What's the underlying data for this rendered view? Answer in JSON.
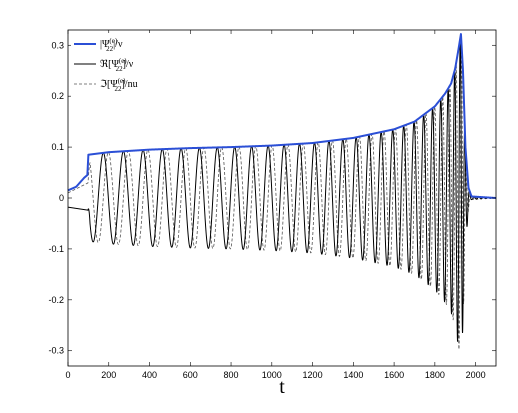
{
  "chart_data": {
    "type": "line",
    "title": "",
    "xlabel": "t",
    "ylabel": "",
    "xlim": [
      0,
      2100
    ],
    "ylim": [
      -0.33,
      0.33
    ],
    "x_ticks": [
      "0",
      "200",
      "400",
      "600",
      "800",
      "1000",
      "1200",
      "1400",
      "1600",
      "1800",
      "2000"
    ],
    "y_ticks": [
      "-0.3",
      "-0.2",
      "-0.1",
      "0",
      "0.1",
      "0.2",
      "0.3"
    ],
    "grid": false,
    "legend_position": "top-left",
    "series": [
      {
        "name": "|Ψ22(e)|/ν",
        "legend": {
          "pre": "|Ψ",
          "sup": "(e)",
          "sub": "22",
          "post": "|/ν"
        },
        "style": "solid",
        "color": "#2b4fd6",
        "width": 2,
        "description": "amplitude envelope",
        "model": "amplitude"
      },
      {
        "name": "ℜ[Ψ22(e)]/ν",
        "legend": {
          "pre": "ℜ[Ψ",
          "sup": "(e)",
          "sub": "22",
          "post": "]/ν"
        },
        "style": "solid",
        "color": "#000000",
        "width": 1,
        "model": "real"
      },
      {
        "name": "ℑ[Ψ22(e)]/nu",
        "legend": {
          "pre": "ℑ[Ψ",
          "sup": "(e)",
          "sub": "22",
          "post": "]/nu"
        },
        "style": "dashed",
        "color": "#555555",
        "width": 0.8,
        "model": "imag"
      }
    ],
    "waveform": {
      "amplitude_points": [
        [
          0,
          0.015
        ],
        [
          40,
          0.022
        ],
        [
          80,
          0.04
        ],
        [
          95,
          0.045
        ],
        [
          100,
          0.085
        ],
        [
          200,
          0.09
        ],
        [
          400,
          0.095
        ],
        [
          600,
          0.098
        ],
        [
          800,
          0.1
        ],
        [
          1000,
          0.103
        ],
        [
          1200,
          0.108
        ],
        [
          1400,
          0.118
        ],
        [
          1600,
          0.135
        ],
        [
          1700,
          0.15
        ],
        [
          1800,
          0.18
        ],
        [
          1850,
          0.205
        ],
        [
          1880,
          0.225
        ],
        [
          1900,
          0.255
        ],
        [
          1915,
          0.29
        ],
        [
          1928,
          0.322
        ],
        [
          1938,
          0.25
        ],
        [
          1950,
          0.1
        ],
        [
          1965,
          0.02
        ],
        [
          1980,
          0.003
        ],
        [
          2100,
          0.0
        ]
      ],
      "cycles_per_unit_start": 0.0097,
      "merger_time": 1928
    }
  }
}
